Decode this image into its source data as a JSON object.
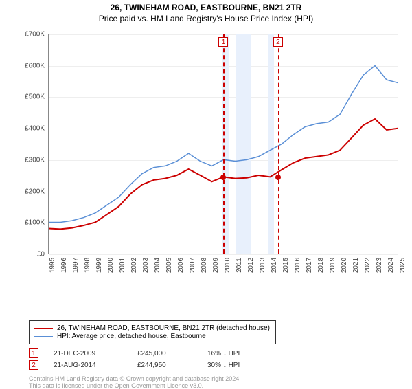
{
  "title": "26, TWINEHAM ROAD, EASTBOURNE, BN21 2TR",
  "subtitle": "Price paid vs. HM Land Registry's House Price Index (HPI)",
  "chart": {
    "type": "line",
    "background_color": "#ffffff",
    "grid_color": "#eeeeee",
    "ylim": [
      0,
      700000
    ],
    "ytick_step": 100000,
    "y_ticks": [
      "£0",
      "£100K",
      "£200K",
      "£300K",
      "£400K",
      "£500K",
      "£600K",
      "£700K"
    ],
    "x_years": [
      1995,
      1996,
      1997,
      1998,
      1999,
      2000,
      2001,
      2002,
      2003,
      2004,
      2005,
      2006,
      2007,
      2008,
      2009,
      2010,
      2011,
      2012,
      2013,
      2014,
      2015,
      2016,
      2017,
      2018,
      2019,
      2020,
      2021,
      2022,
      2023,
      2024,
      2025
    ],
    "bands": [
      {
        "from_year": 2009.9,
        "to_year": 2010.5,
        "color": "#e8f0fc"
      },
      {
        "from_year": 2011.0,
        "to_year": 2012.3,
        "color": "#e8f0fc"
      },
      {
        "from_year": 2013.8,
        "to_year": 2014.3,
        "color": "#e8f0fc"
      }
    ],
    "sale_vlines": [
      {
        "idx": "1",
        "year": 2009.97,
        "label": "1"
      },
      {
        "idx": "2",
        "year": 2014.64,
        "label": "2"
      }
    ],
    "sale_markers": [
      {
        "year": 2009.97,
        "price": 245000
      },
      {
        "year": 2014.64,
        "price": 244950
      }
    ],
    "series": [
      {
        "name": "property",
        "label": "26, TWINEHAM ROAD, EASTBOURNE, BN21 2TR (detached house)",
        "color": "#cc0000",
        "line_width": 2,
        "data": [
          [
            1995,
            80000
          ],
          [
            1996,
            78000
          ],
          [
            1997,
            82000
          ],
          [
            1998,
            90000
          ],
          [
            1999,
            100000
          ],
          [
            2000,
            125000
          ],
          [
            2001,
            150000
          ],
          [
            2002,
            190000
          ],
          [
            2003,
            220000
          ],
          [
            2004,
            235000
          ],
          [
            2005,
            240000
          ],
          [
            2006,
            250000
          ],
          [
            2007,
            270000
          ],
          [
            2008,
            250000
          ],
          [
            2009,
            230000
          ],
          [
            2010,
            245000
          ],
          [
            2011,
            240000
          ],
          [
            2012,
            242000
          ],
          [
            2013,
            250000
          ],
          [
            2014,
            245000
          ],
          [
            2015,
            268000
          ],
          [
            2016,
            290000
          ],
          [
            2017,
            305000
          ],
          [
            2018,
            310000
          ],
          [
            2019,
            315000
          ],
          [
            2020,
            330000
          ],
          [
            2021,
            370000
          ],
          [
            2022,
            410000
          ],
          [
            2023,
            430000
          ],
          [
            2024,
            395000
          ],
          [
            2025,
            400000
          ]
        ]
      },
      {
        "name": "hpi",
        "label": "HPI: Average price, detached house, Eastbourne",
        "color": "#5a8fd6",
        "line_width": 1.5,
        "data": [
          [
            1995,
            100000
          ],
          [
            1996,
            100000
          ],
          [
            1997,
            105000
          ],
          [
            1998,
            115000
          ],
          [
            1999,
            130000
          ],
          [
            2000,
            155000
          ],
          [
            2001,
            180000
          ],
          [
            2002,
            220000
          ],
          [
            2003,
            255000
          ],
          [
            2004,
            275000
          ],
          [
            2005,
            280000
          ],
          [
            2006,
            295000
          ],
          [
            2007,
            320000
          ],
          [
            2008,
            295000
          ],
          [
            2009,
            280000
          ],
          [
            2010,
            300000
          ],
          [
            2011,
            295000
          ],
          [
            2012,
            300000
          ],
          [
            2013,
            310000
          ],
          [
            2014,
            330000
          ],
          [
            2015,
            350000
          ],
          [
            2016,
            380000
          ],
          [
            2017,
            405000
          ],
          [
            2018,
            415000
          ],
          [
            2019,
            420000
          ],
          [
            2020,
            445000
          ],
          [
            2021,
            510000
          ],
          [
            2022,
            570000
          ],
          [
            2023,
            600000
          ],
          [
            2024,
            555000
          ],
          [
            2025,
            545000
          ]
        ]
      }
    ]
  },
  "legend": {
    "rows": [
      {
        "color": "#cc0000",
        "width": 2,
        "label": "26, TWINEHAM ROAD, EASTBOURNE, BN21 2TR (detached house)"
      },
      {
        "color": "#5a8fd6",
        "width": 1.5,
        "label": "HPI: Average price, detached house, Eastbourne"
      }
    ]
  },
  "sales_table": [
    {
      "idx": "1",
      "date": "21-DEC-2009",
      "price": "£245,000",
      "delta": "16% ↓ HPI"
    },
    {
      "idx": "2",
      "date": "21-AUG-2014",
      "price": "£244,950",
      "delta": "30% ↓ HPI"
    }
  ],
  "footer": {
    "line1": "Contains HM Land Registry data © Crown copyright and database right 2024.",
    "line2": "This data is licensed under the Open Government Licence v3.0."
  }
}
